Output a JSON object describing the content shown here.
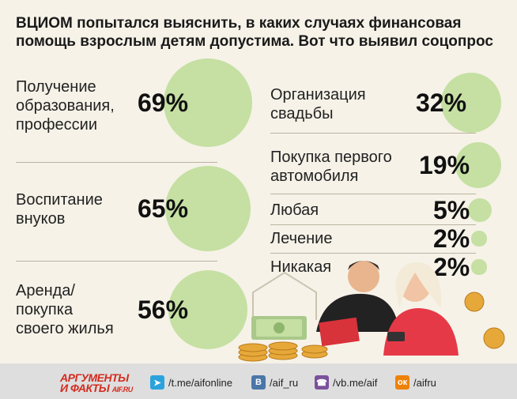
{
  "title": {
    "line1": "ВЦИОМ попытался выяснить, в каких случаях финансовая",
    "line2": "помощь взрослым детям допустима. Вот что выявил соцопрос"
  },
  "chart_data": {
    "type": "bubble",
    "title": "ВЦИОМ попытался выяснить, в каких случаях финансовая помощь взрослым детям допустима. Вот что выявил соцопрос",
    "unit": "%",
    "categories": [
      "Получение образования, профессии",
      "Воспитание внуков",
      "Аренда/ покупка своего жилья",
      "Организация свадьбы",
      "Покупка первого автомобиля",
      "Любая",
      "Лечение",
      "Никакая"
    ],
    "values": [
      69,
      65,
      56,
      32,
      19,
      5,
      2,
      2
    ]
  },
  "items": {
    "edu": {
      "l1": "Получение",
      "l2": "образования,",
      "l3": "профессии",
      "pct": "69%"
    },
    "kids": {
      "l1": "Воспитание",
      "l2": "внуков",
      "pct": "65%"
    },
    "home": {
      "l1": "Аренда/",
      "l2": "покупка",
      "l3": "своего жилья",
      "pct": "56%"
    },
    "wed": {
      "l1": "Организация",
      "l2": "свадьбы",
      "pct": "32%"
    },
    "car": {
      "l1": "Покупка первого",
      "l2": "автомобиля",
      "pct": "19%"
    },
    "any": {
      "l1": "Любая",
      "pct": "5%"
    },
    "med": {
      "l1": "Лечение",
      "pct": "2%"
    },
    "none": {
      "l1": "Никакая",
      "pct": "2%"
    }
  },
  "colors": {
    "bubble": "#c5e0a2",
    "background": "#f6f2e8",
    "footer": "#dedede",
    "brand": "#d42b1e"
  },
  "footer": {
    "brand_line1": "АРГУМЕНТЫ",
    "brand_line2": "И ФАКТЫ",
    "brand_site": "AIF.RU",
    "telegram": "/t.me/aifonline",
    "vk": "/aif_ru",
    "viber": "/vb.me/aif",
    "ok": "/aifru",
    "icons": [
      "telegram-icon",
      "vk-icon",
      "viber-icon",
      "odnoklassniki-icon"
    ]
  }
}
